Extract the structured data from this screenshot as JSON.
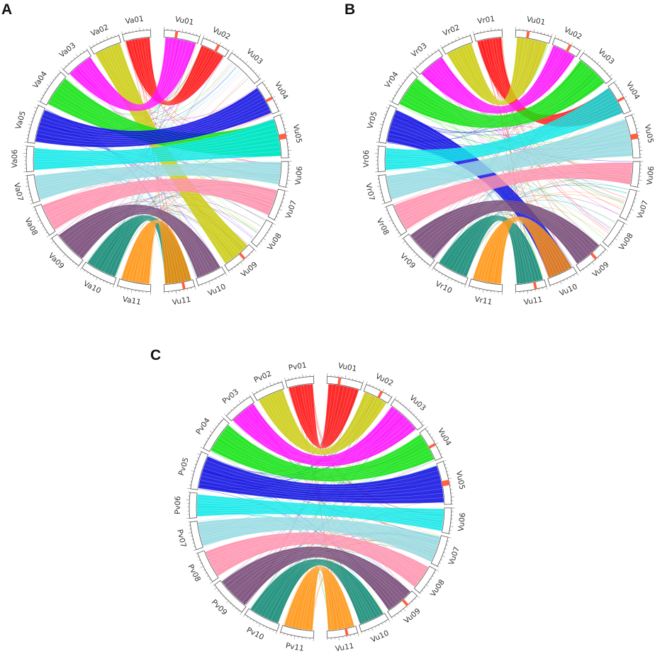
{
  "panels": [
    {
      "letter": "A",
      "left": [
        "Va01",
        "Va02",
        "Va03",
        "Va04",
        "Va05",
        "Va06",
        "Va07",
        "Va08",
        "Va09",
        "Va10",
        "Va11"
      ],
      "right": [
        "Vu01",
        "Vu02",
        "Vu03",
        "Vu04",
        "Vu05",
        "Vu06",
        "Vu07",
        "Vu08",
        "Vu09",
        "Vu10",
        "Vu11"
      ]
    },
    {
      "letter": "B",
      "left": [
        "Vr01",
        "Vr02",
        "Vr03",
        "Vr04",
        "Vr05",
        "Vr06",
        "Vr07",
        "Vr08",
        "Vr09",
        "Vr10",
        "Vr11"
      ],
      "right": [
        "Vu01",
        "Vu02",
        "Vu03",
        "Vu04",
        "Vu05",
        "Vu06",
        "Vu07",
        "Vu08",
        "Vu09",
        "Vu10",
        "Vu11"
      ]
    },
    {
      "letter": "C",
      "left": [
        "Pv01",
        "Pv02",
        "Pv03",
        "Pv04",
        "Pv05",
        "Pv06",
        "Pv07",
        "Pv08",
        "Pv09",
        "Pv10",
        "Pv11"
      ],
      "right": [
        "Vu01",
        "Vu02",
        "Vu03",
        "Vu04",
        "Vu05",
        "Vu06",
        "Vu07",
        "Vu08",
        "Vu09",
        "Vu10",
        "Vu11"
      ]
    }
  ],
  "ribbon_colors": [
    "#ff0000",
    "#c8c800",
    "#ff00ff",
    "#00e000",
    "#0000e0",
    "#00e6e6",
    "#90d8e0",
    "#ff8aa8",
    "#6b3a6b",
    "#00806a",
    "#ff8c00"
  ],
  "highlight_color": "#ff6040"
}
